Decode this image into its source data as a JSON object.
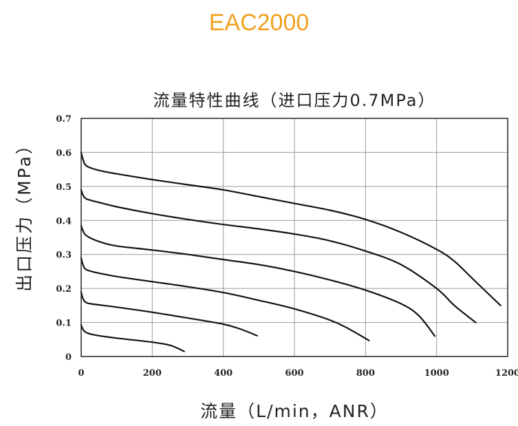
{
  "header": {
    "title": "EAC2000"
  },
  "chart_data": {
    "type": "line",
    "title": "流量特性曲线（进口压力0.7MPa）",
    "xlabel": "流量（L/min，ANR）",
    "ylabel": "出口压力（MPa）",
    "xlim": [
      0,
      1200
    ],
    "ylim": [
      0,
      0.7
    ],
    "xticks": [
      0,
      200,
      400,
      600,
      800,
      1000,
      1200
    ],
    "yticks": [
      0,
      0.1,
      0.2,
      0.3,
      0.4,
      0.5,
      0.6,
      0.7
    ],
    "xtick_labels": [
      "0",
      "200",
      "400",
      "600",
      "800",
      "1000",
      "1200"
    ],
    "ytick_labels": [
      "0",
      "0.1",
      "0.2",
      "0.3",
      "0.4",
      "0.5",
      "0.6",
      "0.7"
    ],
    "grid": true,
    "series": [
      {
        "x": [
          0,
          5,
          15,
          40,
          100,
          200,
          250,
          290
        ],
        "y": [
          0.093,
          0.08,
          0.07,
          0.063,
          0.054,
          0.042,
          0.033,
          0.015
        ]
      },
      {
        "x": [
          0,
          5,
          15,
          40,
          100,
          200,
          300,
          400,
          450,
          495
        ],
        "y": [
          0.19,
          0.17,
          0.158,
          0.153,
          0.145,
          0.13,
          0.113,
          0.095,
          0.08,
          0.061
        ]
      },
      {
        "x": [
          0,
          5,
          15,
          50,
          100,
          200,
          300,
          400,
          500,
          600,
          700,
          750,
          810
        ],
        "y": [
          0.29,
          0.27,
          0.255,
          0.245,
          0.235,
          0.22,
          0.205,
          0.188,
          0.165,
          0.14,
          0.107,
          0.083,
          0.047
        ]
      },
      {
        "x": [
          0,
          5,
          15,
          50,
          100,
          200,
          300,
          400,
          500,
          600,
          700,
          800,
          900,
          950,
          995
        ],
        "y": [
          0.385,
          0.37,
          0.355,
          0.338,
          0.325,
          0.313,
          0.3,
          0.285,
          0.27,
          0.25,
          0.225,
          0.195,
          0.155,
          0.12,
          0.06
        ]
      },
      {
        "x": [
          0,
          5,
          15,
          50,
          100,
          200,
          300,
          400,
          500,
          600,
          700,
          800,
          900,
          1000,
          1050,
          1110
        ],
        "y": [
          0.49,
          0.475,
          0.463,
          0.453,
          0.44,
          0.42,
          0.403,
          0.388,
          0.375,
          0.36,
          0.34,
          0.31,
          0.27,
          0.2,
          0.15,
          0.1
        ]
      },
      {
        "x": [
          0,
          5,
          15,
          50,
          100,
          200,
          300,
          400,
          500,
          600,
          700,
          800,
          900,
          1000,
          1050,
          1100,
          1180
        ],
        "y": [
          0.6,
          0.58,
          0.56,
          0.547,
          0.537,
          0.52,
          0.505,
          0.49,
          0.47,
          0.45,
          0.43,
          0.403,
          0.365,
          0.315,
          0.28,
          0.23,
          0.15
        ]
      }
    ]
  }
}
